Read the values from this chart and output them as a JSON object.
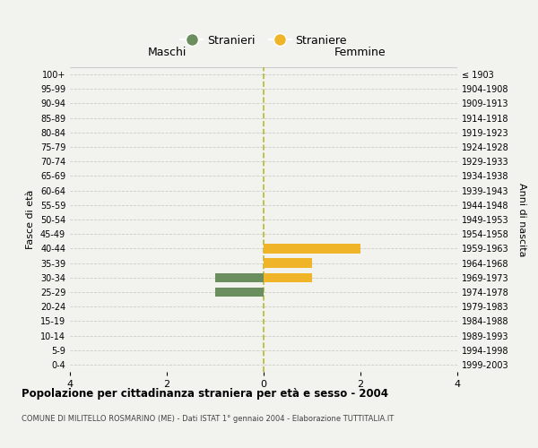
{
  "age_groups": [
    "0-4",
    "5-9",
    "10-14",
    "15-19",
    "20-24",
    "25-29",
    "30-34",
    "35-39",
    "40-44",
    "45-49",
    "50-54",
    "55-59",
    "60-64",
    "65-69",
    "70-74",
    "75-79",
    "80-84",
    "85-89",
    "90-94",
    "95-99",
    "100+"
  ],
  "birth_years": [
    "1999-2003",
    "1994-1998",
    "1989-1993",
    "1984-1988",
    "1979-1983",
    "1974-1978",
    "1969-1973",
    "1964-1968",
    "1959-1963",
    "1954-1958",
    "1949-1953",
    "1944-1948",
    "1939-1943",
    "1934-1938",
    "1929-1933",
    "1924-1928",
    "1919-1923",
    "1914-1918",
    "1909-1913",
    "1904-1908",
    "≤ 1903"
  ],
  "males": [
    0,
    0,
    0,
    0,
    0,
    1,
    1,
    0,
    0,
    0,
    0,
    0,
    0,
    0,
    0,
    0,
    0,
    0,
    0,
    0,
    0
  ],
  "females": [
    0,
    0,
    0,
    0,
    0,
    0,
    1,
    1,
    2,
    0,
    0,
    0,
    0,
    0,
    0,
    0,
    0,
    0,
    0,
    0,
    0
  ],
  "male_color": "#6b8e5e",
  "female_color": "#f0b429",
  "bg_color": "#f2f2ee",
  "xlim": 4,
  "title": "Popolazione per cittadinanza straniera per età e sesso - 2004",
  "subtitle": "COMUNE DI MILITELLO ROSMARINO (ME) - Dati ISTAT 1° gennaio 2004 - Elaborazione TUTTITALIA.IT",
  "legend_male": "Stranieri",
  "legend_female": "Straniere",
  "left_label": "Maschi",
  "right_label": "Femmine",
  "ylabel_left": "Fasce di età",
  "ylabel_right": "Anni di nascita",
  "center_line_color": "#b8b830",
  "grid_color": "#cccccc"
}
